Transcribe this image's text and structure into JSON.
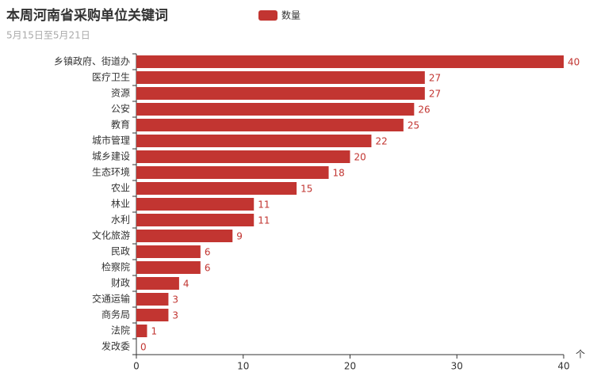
{
  "chart_data": {
    "type": "hbar",
    "title": "本周河南省采购单位关键词",
    "subtitle": "5月15日至5月21日",
    "x_label": "个",
    "categories": [
      "乡镇政府、街道办",
      "医疗卫生",
      "资源",
      "公安",
      "教育",
      "城市管理",
      "城乡建设",
      "生态环境",
      "农业",
      "林业",
      "水利",
      "文化旅游",
      "民政",
      "检察院",
      "财政",
      "交通运输",
      "商务局",
      "法院",
      "发改委"
    ],
    "series": [
      {
        "name": "数量",
        "color": "#c23531",
        "values": [
          40,
          27,
          27,
          26,
          25,
          22,
          20,
          18,
          15,
          11,
          11,
          9,
          6,
          6,
          4,
          3,
          3,
          1,
          0
        ]
      }
    ],
    "xlim": [
      0,
      40
    ],
    "xticks": [
      0,
      10,
      20,
      30,
      40
    ],
    "grid": false,
    "legend": "top"
  }
}
